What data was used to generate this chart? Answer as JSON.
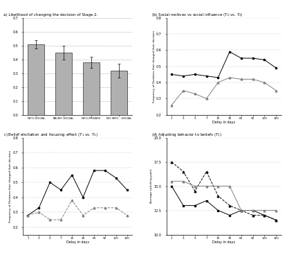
{
  "panel_a": {
    "title": "a) Likelihood of changing the decision of Stage 2.",
    "categories": [
      "INFO-SOCIAL",
      "BELIEF-SOCIAL",
      "INFO-PRIVATE",
      "NO INFO - SOCIAL"
    ],
    "values": [
      0.51,
      0.45,
      0.38,
      0.32
    ],
    "errors": [
      0.03,
      0.05,
      0.04,
      0.05
    ],
    "bar_color": "#b0b0b0",
    "ylim": [
      0,
      0.7
    ],
    "yticks": [
      0.0,
      0.1,
      0.2,
      0.3,
      0.4,
      0.5,
      0.6,
      0.7
    ]
  },
  "panel_b": {
    "title": "(b) Social motives vs social influence ($T_0$ vs. $T_2$)",
    "xlabel": "Delay in days",
    "ylabel": "Frequency of Dictators that changed their decision",
    "xvals": [
      1,
      3,
      5,
      7,
      15,
      30,
      60,
      90,
      120,
      160
    ],
    "info_social": [
      0.45,
      0.44,
      0.45,
      0.44,
      0.43,
      0.59,
      0.55,
      0.55,
      0.54,
      0.49
    ],
    "info_private": [
      0.26,
      0.35,
      0.33,
      0.3,
      0.4,
      0.43,
      0.42,
      0.42,
      0.4,
      0.35
    ],
    "ylim": [
      0.2,
      0.8
    ],
    "yticks": [
      0.2,
      0.3,
      0.4,
      0.5,
      0.6,
      0.7,
      0.8
    ]
  },
  "panel_c": {
    "title": "c) Belief elicitation and focusing effect ($T_1$ vs. $T_3$)",
    "xlabel": "Delay in days",
    "ylabel": "Frequency of Dictators that changed their decision",
    "xvals": [
      1,
      3,
      5,
      7,
      15,
      30,
      60,
      90,
      120,
      160
    ],
    "belief_social": [
      0.28,
      0.33,
      0.5,
      0.45,
      0.55,
      0.4,
      0.58,
      0.58,
      0.53,
      0.45
    ],
    "no_info_social": [
      0.28,
      0.3,
      0.25,
      0.25,
      0.38,
      0.28,
      0.33,
      0.33,
      0.33,
      0.28
    ],
    "ylim": [
      0.15,
      0.8
    ],
    "yticks": [
      0.2,
      0.3,
      0.4,
      0.5,
      0.6,
      0.7,
      0.8
    ]
  },
  "panel_d": {
    "title": "(d) Adjusting behavior to beliefs ($T_1$)",
    "xlabel": "Delay in days",
    "ylabel": "Average switching point",
    "xvals": [
      1,
      3,
      5,
      7,
      15,
      30,
      60,
      90,
      120,
      160
    ],
    "belief_social_stage2": [
      15.0,
      13.0,
      13.0,
      13.5,
      12.5,
      12.0,
      12.5,
      12.5,
      12.0,
      11.5
    ],
    "belief_social_stage3": [
      17.5,
      16.5,
      14.5,
      16.5,
      14.0,
      13.0,
      12.5,
      12.0,
      12.0,
      11.5
    ],
    "belief_social_stage4": [
      15.5,
      15.5,
      15.0,
      15.0,
      15.0,
      15.0,
      12.5,
      12.5,
      12.5,
      12.5
    ],
    "ylim": [
      10,
      20
    ],
    "yticks": [
      10,
      12.5,
      15,
      17.5,
      20
    ]
  },
  "background_color": "#ffffff"
}
